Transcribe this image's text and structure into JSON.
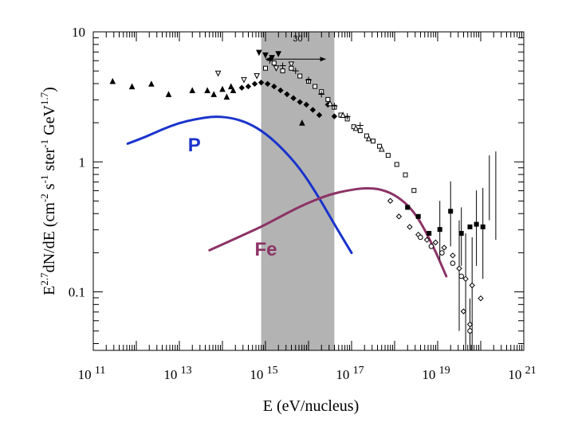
{
  "chart_data": {
    "type": "scatter",
    "title": "",
    "xlabel": "E  (eV/nucleus)",
    "ylabel_parts": [
      "E",
      "2.7",
      "dN/dE  (cm",
      "-2",
      " s",
      "-1",
      " ster",
      "-1",
      " GeV",
      "1.7",
      ")"
    ],
    "x_scale": "log10",
    "y_scale": "log10",
    "xlim": [
      11,
      21
    ],
    "ylim": [
      -1.45,
      1.0
    ],
    "x_ticks": [
      {
        "exp": 11,
        "base": "10",
        "sup": "11"
      },
      {
        "exp": 13,
        "base": "10",
        "sup": "13"
      },
      {
        "exp": 15,
        "base": "10",
        "sup": "15"
      },
      {
        "exp": 17,
        "base": "10",
        "sup": "17"
      },
      {
        "exp": 19,
        "base": "10",
        "sup": "19"
      },
      {
        "exp": 21,
        "base": "10",
        "sup": "21"
      }
    ],
    "y_ticks": [
      {
        "log": 1,
        "label": "10"
      },
      {
        "log": 0,
        "label": "1"
      },
      {
        "log": -1,
        "label": "0.1"
      }
    ],
    "band": {
      "xmin": 14.9,
      "xmax": 16.6,
      "color": "#b3b3b3",
      "label": "30"
    },
    "band_arrow": {
      "x_start": 15.0,
      "x_end": 16.4,
      "y": 0.79
    },
    "curves": [
      {
        "name": "P",
        "color": "#1a33cc",
        "label_at": [
          13.2,
          0.08
        ],
        "x": [
          11.8,
          12.2,
          12.6,
          13.0,
          13.4,
          13.8,
          14.2,
          14.6,
          15.0,
          15.4,
          15.8,
          16.2,
          16.6,
          17.0
        ],
        "y": [
          0.14,
          0.19,
          0.25,
          0.3,
          0.33,
          0.35,
          0.34,
          0.3,
          0.22,
          0.1,
          -0.05,
          -0.25,
          -0.48,
          -0.7
        ]
      },
      {
        "name": "Fe",
        "color": "#8c3366",
        "label_at": [
          14.75,
          -0.72
        ],
        "x": [
          13.7,
          14.1,
          14.5,
          14.9,
          15.3,
          15.7,
          16.1,
          16.5,
          16.9,
          17.3,
          17.7,
          18.1,
          18.5,
          18.9,
          19.2
        ],
        "y": [
          -0.68,
          -0.62,
          -0.56,
          -0.5,
          -0.43,
          -0.36,
          -0.3,
          -0.25,
          -0.22,
          -0.2,
          -0.21,
          -0.27,
          -0.4,
          -0.65,
          -0.88
        ]
      }
    ],
    "data_series": [
      {
        "marker": "triangle-filled",
        "x": [
          11.45,
          11.9,
          12.35,
          12.75,
          13.3,
          13.65,
          13.8,
          14.0,
          14.1,
          14.2,
          14.25,
          15.85
        ],
        "y": [
          0.62,
          0.58,
          0.6,
          0.52,
          0.55,
          0.55,
          0.52,
          0.56,
          0.5,
          0.58,
          0.55,
          0.3
        ]
      },
      {
        "marker": "triangle-down-open",
        "x": [
          13.9,
          14.5,
          14.8,
          15.25,
          15.6
        ],
        "y": [
          0.68,
          0.63,
          0.66,
          0.72,
          0.75
        ]
      },
      {
        "marker": "triangle-down-filled",
        "x": [
          14.85,
          15.0,
          15.15,
          15.3
        ],
        "y": [
          0.84,
          0.82,
          0.8,
          0.83
        ]
      },
      {
        "marker": "diamond-filled",
        "x": [
          14.45,
          14.6,
          14.75,
          14.9,
          15.05,
          15.2,
          15.35,
          15.5,
          15.65,
          15.8,
          15.95,
          16.1,
          16.25,
          16.45,
          16.6
        ],
        "y": [
          0.57,
          0.58,
          0.6,
          0.61,
          0.6,
          0.58,
          0.55,
          0.52,
          0.49,
          0.46,
          0.44,
          0.4,
          0.36,
          0.44,
          0.35
        ]
      },
      {
        "marker": "square-open",
        "x": [
          15.0,
          15.2,
          15.4,
          15.6,
          15.8,
          16.0,
          16.15,
          16.3,
          16.45,
          16.6,
          16.75,
          16.9,
          17.05,
          17.2,
          17.35,
          17.5,
          17.65,
          17.85,
          18.05,
          18.25,
          18.45
        ],
        "y": [
          0.72,
          0.76,
          0.7,
          0.72,
          0.66,
          0.62,
          0.58,
          0.54,
          0.48,
          0.42,
          0.36,
          0.33,
          0.27,
          0.24,
          0.2,
          0.16,
          0.12,
          0.05,
          -0.02,
          -0.1,
          -0.22
        ]
      },
      {
        "marker": "triangle-up-open",
        "x": [
          16.5,
          16.8,
          17.1,
          17.4,
          17.7
        ],
        "y": [
          0.45,
          0.36,
          0.26,
          0.18,
          0.1
        ]
      },
      {
        "marker": "square-filled",
        "x": [
          18.3,
          18.55,
          18.8,
          19.05,
          19.3,
          19.55,
          19.75,
          19.9,
          20.05
        ],
        "y": [
          -0.35,
          -0.42,
          -0.55,
          -0.52,
          -0.38,
          -0.55,
          -0.5,
          -0.48,
          -0.5
        ]
      },
      {
        "marker": "diamond-open",
        "x": [
          17.9,
          18.1,
          18.35,
          18.55,
          18.75,
          18.95,
          19.15,
          19.35,
          19.5,
          19.65,
          19.8,
          20.0,
          19.6,
          19.75
        ],
        "y": [
          -0.3,
          -0.42,
          -0.5,
          -0.56,
          -0.6,
          -0.62,
          -0.66,
          -0.72,
          -0.82,
          -0.9,
          -0.95,
          -1.05,
          -1.15,
          -1.25
        ]
      },
      {
        "marker": "circle-open",
        "x": [
          18.6,
          18.85,
          19.1,
          19.35,
          19.55,
          19.75
        ],
        "y": [
          -0.58,
          -0.65,
          -0.7,
          -0.78,
          -0.88,
          -1.3
        ]
      },
      {
        "marker": "cross",
        "x": [
          15.1,
          15.4,
          15.7,
          16.0,
          16.3,
          16.6,
          16.9,
          17.2
        ],
        "y": [
          0.78,
          0.74,
          0.7,
          0.63,
          0.52,
          0.43,
          0.35,
          0.28
        ]
      }
    ],
    "error_bars": [
      {
        "x": 19.05,
        "y": -0.52,
        "lo": -0.75,
        "hi": -0.3
      },
      {
        "x": 19.3,
        "y": -0.38,
        "lo": -0.65,
        "hi": -0.15
      },
      {
        "x": 19.5,
        "y": -0.82,
        "lo": -1.3,
        "hi": -0.45
      },
      {
        "x": 19.65,
        "y": -0.9,
        "lo": -1.45,
        "hi": -0.55
      },
      {
        "x": 19.8,
        "y": -0.95,
        "lo": -1.45,
        "hi": -0.58
      },
      {
        "x": 19.9,
        "y": -0.48,
        "lo": -0.8,
        "hi": -0.22
      },
      {
        "x": 20.05,
        "y": -0.5,
        "lo": -0.9,
        "hi": -0.2
      },
      {
        "x": 20.2,
        "y": -0.18,
        "lo": -0.45,
        "hi": 0.05
      },
      {
        "x": 20.35,
        "y": -0.18,
        "lo": -0.6,
        "hi": 0.08
      },
      {
        "x": 19.55,
        "y": -0.55,
        "lo": -0.8,
        "hi": -0.35
      },
      {
        "x": 19.75,
        "y": -1.3,
        "lo": -1.45,
        "hi": -1.05
      }
    ],
    "grid": false,
    "legend": "none"
  }
}
